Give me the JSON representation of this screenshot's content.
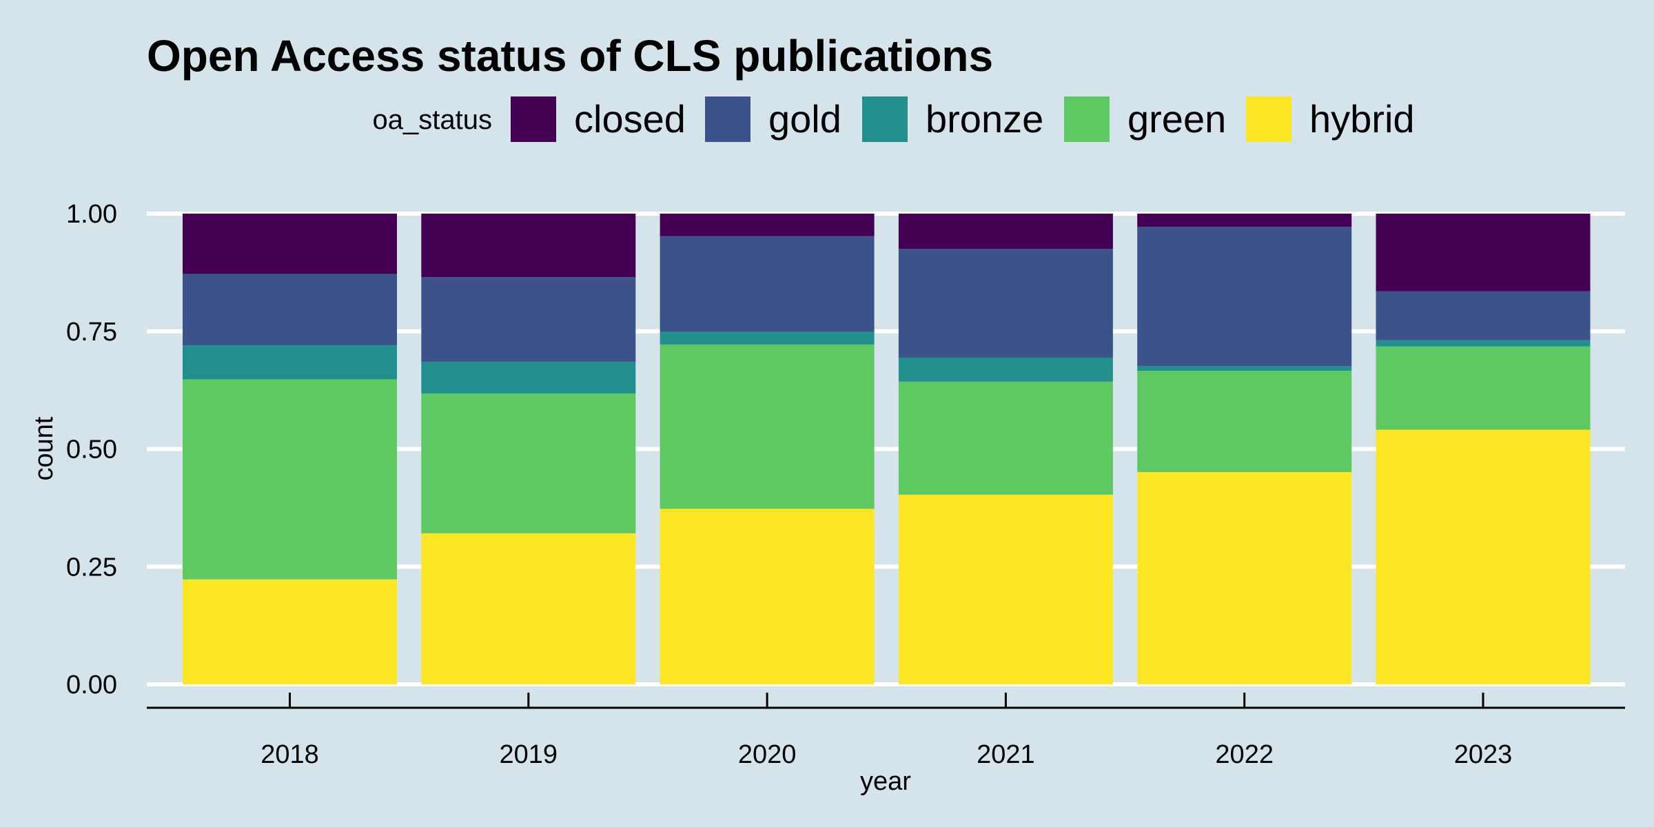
{
  "chart_data": {
    "type": "bar",
    "stacked": "proportional",
    "title": "Open Access status of CLS publications",
    "xlabel": "year",
    "ylabel": "count",
    "ylim": [
      0,
      1
    ],
    "y_ticks": [
      "0.00",
      "0.25",
      "0.50",
      "0.75",
      "1.00"
    ],
    "grid": true,
    "legend": {
      "title": "oa_status",
      "position": "top"
    },
    "categories": [
      "2018",
      "2019",
      "2020",
      "2021",
      "2022",
      "2023"
    ],
    "series": [
      {
        "name": "closed",
        "color": "#440154",
        "values": [
          0.128,
          0.135,
          0.048,
          0.075,
          0.028,
          0.165
        ]
      },
      {
        "name": "gold",
        "color": "#3b528b",
        "values": [
          0.152,
          0.18,
          0.203,
          0.231,
          0.296,
          0.104
        ]
      },
      {
        "name": "bronze",
        "color": "#21908c",
        "values": [
          0.072,
          0.067,
          0.027,
          0.051,
          0.01,
          0.013
        ]
      },
      {
        "name": "green",
        "color": "#5ec962",
        "values": [
          0.425,
          0.297,
          0.349,
          0.24,
          0.215,
          0.177
        ]
      },
      {
        "name": "hybrid",
        "color": "#fde725",
        "values": [
          0.223,
          0.321,
          0.373,
          0.403,
          0.451,
          0.541
        ]
      }
    ]
  }
}
